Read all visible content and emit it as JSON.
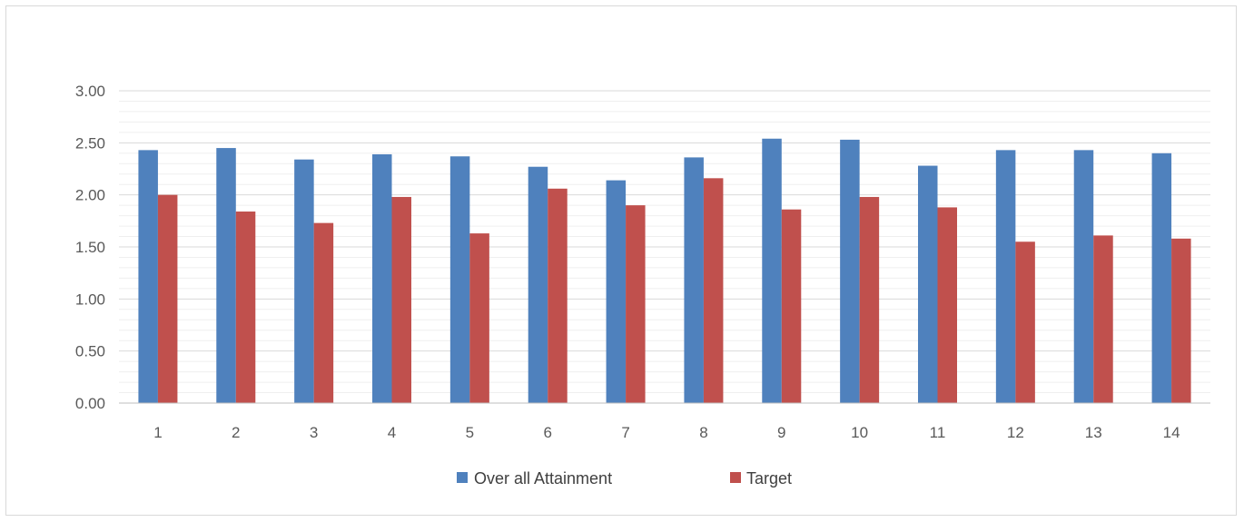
{
  "chart_data": {
    "type": "bar",
    "title": "",
    "xlabel": "",
    "ylabel": "",
    "categories": [
      "1",
      "2",
      "3",
      "4",
      "5",
      "6",
      "7",
      "8",
      "9",
      "10",
      "11",
      "12",
      "13",
      "14"
    ],
    "series": [
      {
        "name": "Over all Attainment",
        "color": "#4f81bd",
        "values": [
          2.43,
          2.45,
          2.34,
          2.39,
          2.37,
          2.27,
          2.14,
          2.36,
          2.54,
          2.53,
          2.28,
          2.43,
          2.43,
          2.4
        ]
      },
      {
        "name": "Target",
        "color": "#c0504d",
        "values": [
          2.0,
          1.84,
          1.73,
          1.98,
          1.63,
          2.06,
          1.9,
          2.16,
          1.86,
          1.98,
          1.88,
          1.55,
          1.61,
          1.58
        ]
      }
    ],
    "ylim": [
      0,
      3
    ],
    "yticks": [
      "0.00",
      "0.50",
      "1.00",
      "1.50",
      "2.00",
      "2.50",
      "3.00"
    ],
    "grid": true,
    "legend_position": "bottom"
  }
}
